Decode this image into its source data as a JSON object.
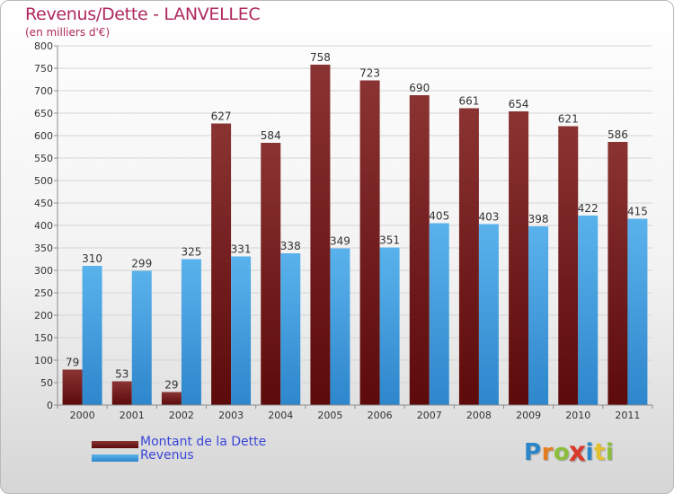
{
  "header": {
    "title": "Revenus/Dette - LANVELLEC",
    "subtitle": "(en milliers d'€)"
  },
  "legend": [
    {
      "label": "Montant de la Dette",
      "color": "#6e1111"
    },
    {
      "label": "Revenus",
      "color": "#3e9ee3"
    }
  ],
  "logo": {
    "text": "Proxiti",
    "letters": [
      "P",
      "r",
      "o",
      "x",
      "i",
      "t",
      "i"
    ],
    "colors": [
      "#2a86c9",
      "#e57c1f",
      "#8cbe3e",
      "#d93a2c",
      "#2a86c9",
      "#e6c12e",
      "#8cbe3e"
    ]
  },
  "colors": {
    "debt_top": "#8a3333",
    "debt_bottom": "#5c0a0a",
    "rev_top": "#5ab2ec",
    "rev_bottom": "#2e86cc",
    "grid": "#d4d4d4",
    "axis": "#8c8c8c",
    "tick_text": "#333333"
  },
  "chart_data": {
    "type": "bar",
    "title": "Revenus/Dette - LANVELLEC",
    "subtitle": "(en milliers d'€)",
    "categories": [
      "2000",
      "2001",
      "2002",
      "2003",
      "2004",
      "2005",
      "2006",
      "2007",
      "2008",
      "2009",
      "2010",
      "2011"
    ],
    "series": [
      {
        "name": "Montant de la Dette",
        "values": [
          79,
          53,
          29,
          627,
          584,
          758,
          723,
          690,
          661,
          654,
          621,
          586
        ]
      },
      {
        "name": "Revenus",
        "values": [
          310,
          299,
          325,
          331,
          338,
          349,
          351,
          405,
          403,
          398,
          422,
          415
        ]
      }
    ],
    "ylim": [
      0,
      800
    ],
    "yticks": [
      0,
      50,
      100,
      150,
      200,
      250,
      300,
      350,
      400,
      450,
      500,
      550,
      600,
      650,
      700,
      750,
      800
    ],
    "grid": true,
    "legend_position": "bottom-left"
  }
}
